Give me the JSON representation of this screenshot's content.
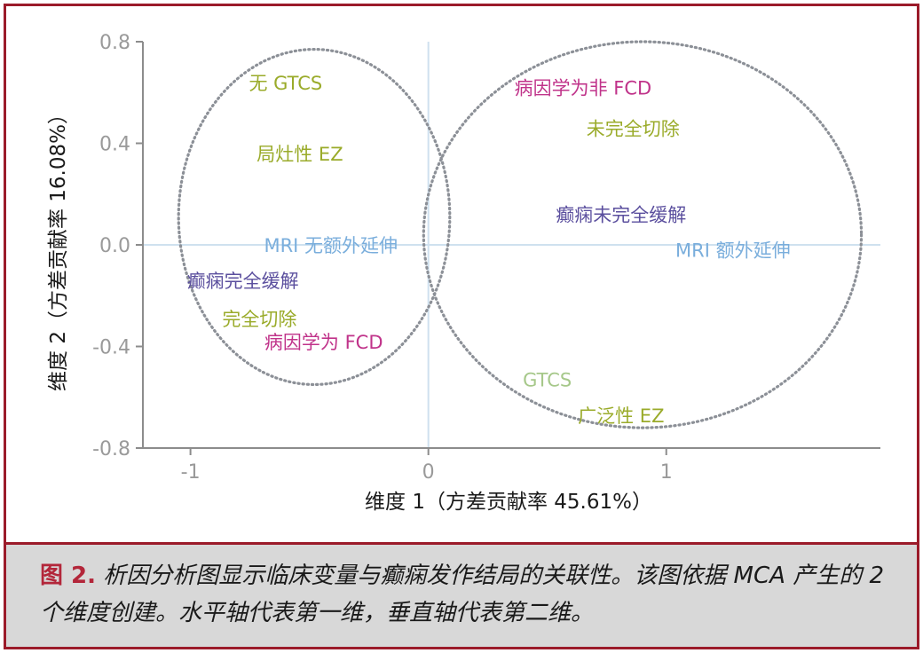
{
  "chart_data": {
    "type": "scatter",
    "xlabel": "维度 1（方差贡献率 45.61%）",
    "ylabel": "维度 2（方差贡献率 16.08%）",
    "xlim": [
      -1.2,
      1.9
    ],
    "ylim": [
      -0.8,
      0.8
    ],
    "xticks": [
      {
        "value": -1,
        "label": "-1"
      },
      {
        "value": 0,
        "label": "0"
      },
      {
        "value": 1,
        "label": "1"
      }
    ],
    "yticks": [
      {
        "value": 0.8,
        "label": "0.8"
      },
      {
        "value": 0.4,
        "label": "0.4"
      },
      {
        "value": 0.0,
        "label": "0.0"
      },
      {
        "value": -0.4,
        "label": "-0.4"
      },
      {
        "value": -0.8,
        "label": "-0.8"
      }
    ],
    "points": [
      {
        "label": "无 GTCS",
        "x": -0.6,
        "y": 0.64,
        "color": "#9aab2a"
      },
      {
        "label": "局灶性 EZ",
        "x": -0.54,
        "y": 0.36,
        "color": "#9aab2a"
      },
      {
        "label": "MRI 无额外延伸",
        "x": -0.41,
        "y": 0.0,
        "color": "#7aaedc"
      },
      {
        "label": "癫痫完全缓解",
        "x": -0.78,
        "y": -0.14,
        "color": "#5b4f9e"
      },
      {
        "label": "完全切除",
        "x": -0.71,
        "y": -0.29,
        "color": "#9aab2a"
      },
      {
        "label": "病因学为 FCD",
        "x": -0.44,
        "y": -0.38,
        "color": "#c0338a"
      },
      {
        "label": "病因学为非 FCD",
        "x": 0.65,
        "y": 0.62,
        "color": "#c0338a"
      },
      {
        "label": "未完全切除",
        "x": 0.86,
        "y": 0.46,
        "color": "#9aab2a"
      },
      {
        "label": "癫痫未完全缓解",
        "x": 0.81,
        "y": 0.12,
        "color": "#5b4f9e"
      },
      {
        "label": "MRI 额外延伸",
        "x": 1.28,
        "y": -0.02,
        "color": "#7aaedc"
      },
      {
        "label": "GTCS",
        "x": 0.5,
        "y": -0.53,
        "color": "#a6c88a"
      },
      {
        "label": "广泛性 EZ",
        "x": 0.81,
        "y": -0.67,
        "color": "#9aab2a"
      }
    ],
    "circles": [
      {
        "name": "left",
        "cx": -0.48,
        "cy": 0.11,
        "rx": 0.57,
        "ry": 0.66
      },
      {
        "name": "right",
        "cx": 0.9,
        "cy": 0.04,
        "rx": 0.92,
        "ry": 0.76
      }
    ],
    "grid": false,
    "zero_lines": true
  },
  "caption": {
    "label": "图 2.",
    "text": "析因分析图显示临床变量与癫痫发作结局的关联性。该图依据 MCA 产生的 2 个维度创建。水平轴代表第一维，垂直轴代表第二维。"
  },
  "colors": {
    "frame": "#9b1b2a",
    "caption_bg": "#d8d8d8",
    "axis": "#8c8c8c",
    "zero_line": "#cfe1ef",
    "circle": "#8c9097"
  }
}
